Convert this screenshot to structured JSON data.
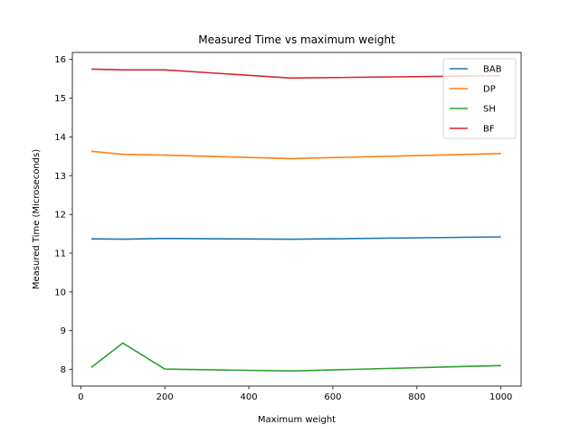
{
  "chart_data": {
    "type": "line",
    "title": "Measured Time vs maximum weight",
    "xlabel": "Maximum weight",
    "ylabel": "Measured Time (Microseconds)",
    "xlim": [
      -20,
      1048
    ],
    "ylim": [
      7.57,
      16.18
    ],
    "xticks": [
      0,
      200,
      400,
      600,
      800,
      1000
    ],
    "yticks": [
      8,
      9,
      10,
      11,
      12,
      13,
      14,
      15,
      16
    ],
    "x": [
      25,
      100,
      200,
      500,
      1000
    ],
    "grid": false,
    "legend_position": "top-right",
    "series": [
      {
        "name": "BAB",
        "color": "#1f77b4",
        "values": [
          11.37,
          11.36,
          11.38,
          11.36,
          11.42
        ]
      },
      {
        "name": "DP",
        "color": "#ff7f0e",
        "values": [
          13.63,
          13.55,
          13.53,
          13.44,
          13.57
        ]
      },
      {
        "name": "SH",
        "color": "#2ca02c",
        "values": [
          8.05,
          8.68,
          8.01,
          7.96,
          8.1
        ]
      },
      {
        "name": "BF",
        "color": "#d62728",
        "values": [
          15.75,
          15.73,
          15.73,
          15.52,
          15.58
        ]
      }
    ]
  }
}
